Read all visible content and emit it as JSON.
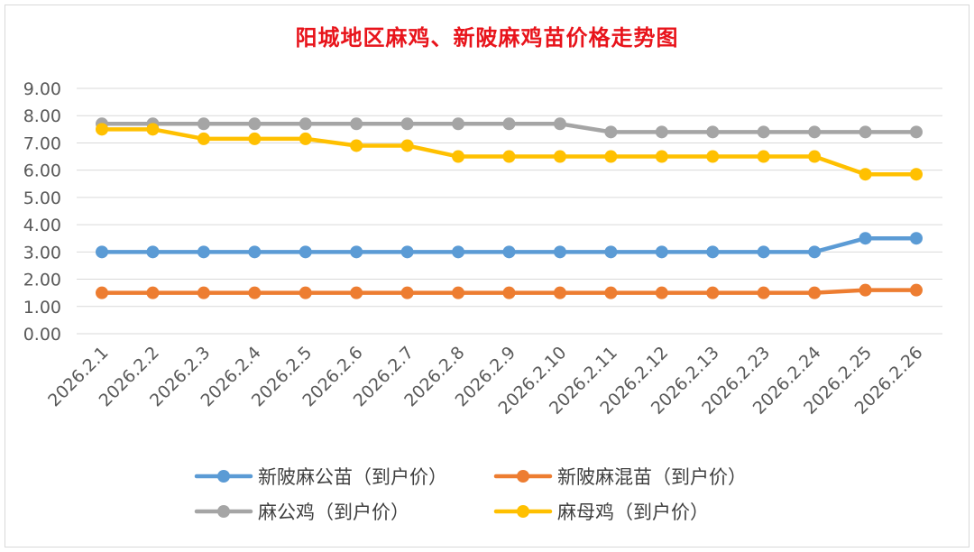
{
  "chart_data": {
    "type": "line",
    "title": "阳城地区麻鸡、新陂麻鸡苗价格走势图",
    "xlabel": "",
    "ylabel": "",
    "ylim": [
      0,
      9
    ],
    "yticks": [
      "0.00",
      "1.00",
      "2.00",
      "3.00",
      "4.00",
      "5.00",
      "6.00",
      "7.00",
      "8.00",
      "9.00"
    ],
    "categories": [
      "2026.2.1",
      "2026.2.2",
      "2026.2.3",
      "2026.2.4",
      "2026.2.5",
      "2026.2.6",
      "2026.2.7",
      "2026.2.8",
      "2026.2.9",
      "2026.2.10",
      "2026.2.11",
      "2026.2.12",
      "2026.2.13",
      "2026.2.23",
      "2026.2.24",
      "2026.2.25",
      "2026.2.26"
    ],
    "grid": true,
    "legend_position": "bottom",
    "series": [
      {
        "name": "新陂麻公苗（到户价）",
        "color": "#5b9bd5",
        "values": [
          3.0,
          3.0,
          3.0,
          3.0,
          3.0,
          3.0,
          3.0,
          3.0,
          3.0,
          3.0,
          3.0,
          3.0,
          3.0,
          3.0,
          3.0,
          3.5,
          3.5
        ]
      },
      {
        "name": "新陂麻混苗（到户价）",
        "color": "#ed7d31",
        "values": [
          1.5,
          1.5,
          1.5,
          1.5,
          1.5,
          1.5,
          1.5,
          1.5,
          1.5,
          1.5,
          1.5,
          1.5,
          1.5,
          1.5,
          1.5,
          1.6,
          1.6
        ]
      },
      {
        "name": "麻公鸡（到户价）",
        "color": "#a5a5a5",
        "values": [
          7.7,
          7.7,
          7.7,
          7.7,
          7.7,
          7.7,
          7.7,
          7.7,
          7.7,
          7.7,
          7.4,
          7.4,
          7.4,
          7.4,
          7.4,
          7.4,
          7.4
        ]
      },
      {
        "name": "麻母鸡（到户价）",
        "color": "#ffc000",
        "values": [
          7.5,
          7.5,
          7.15,
          7.15,
          7.15,
          6.9,
          6.9,
          6.5,
          6.5,
          6.5,
          6.5,
          6.5,
          6.5,
          6.5,
          6.5,
          5.85,
          5.85
        ]
      }
    ]
  }
}
